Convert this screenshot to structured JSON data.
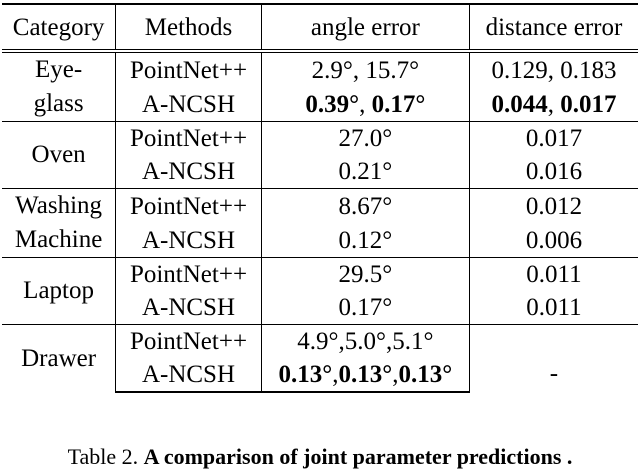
{
  "table": {
    "headers": {
      "category": "Category",
      "methods": "Methods",
      "angle": "angle error",
      "distance": "distance error"
    },
    "groups": [
      {
        "category_lines": [
          "Eye-",
          "glass"
        ],
        "rows": [
          {
            "method": "PointNet++",
            "angle": "2.9°, 15.7°",
            "distance": "0.129, 0.183"
          },
          {
            "method": "A-NCSH",
            "angle_parts": [
              "0.39°",
              ", ",
              "0.17°"
            ],
            "distance_parts": [
              "0.044",
              ", ",
              "0.017"
            ]
          }
        ]
      },
      {
        "category_lines": [
          "Oven"
        ],
        "rows": [
          {
            "method": "PointNet++",
            "angle": "27.0°",
            "distance": "0.017"
          },
          {
            "method": "A-NCSH",
            "angle": "0.21°",
            "distance": "0.016"
          }
        ]
      },
      {
        "category_lines": [
          "Washing",
          "Machine"
        ],
        "rows": [
          {
            "method": "PointNet++",
            "angle": "8.67°",
            "distance": "0.012"
          },
          {
            "method": "A-NCSH",
            "angle": "0.12°",
            "distance": "0.006"
          }
        ]
      },
      {
        "category_lines": [
          "Laptop"
        ],
        "rows": [
          {
            "method": "PointNet++",
            "angle": "29.5°",
            "distance": "0.011"
          },
          {
            "method": "A-NCSH",
            "angle": "0.17°",
            "distance": "0.011"
          }
        ]
      },
      {
        "category_lines": [
          "Drawer"
        ],
        "rows": [
          {
            "method": "PointNet++",
            "angle": "4.9°,5.0°,5.1°",
            "distance": ""
          },
          {
            "method": "A-NCSH",
            "angle_parts": [
              "0.13°",
              ",",
              "0.13°",
              ",",
              "0.13°"
            ],
            "distance": "-"
          }
        ]
      }
    ]
  },
  "caption": {
    "label": "Table 2.",
    "title": "A comparison of joint parameter predictions ."
  }
}
